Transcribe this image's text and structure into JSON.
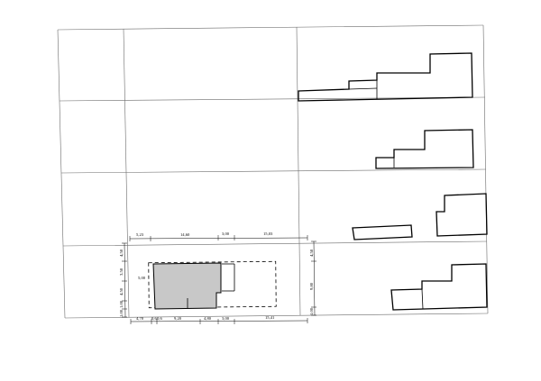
{
  "dimensions": {
    "top": [
      "5,23",
      "14,60",
      "3,00",
      "15,03"
    ],
    "bottom": [
      "4,70",
      "0,6",
      "0,6",
      "9,20",
      "4,80",
      "3,00",
      "15,41"
    ],
    "left": [
      "4,58",
      "3,58",
      "4,50",
      "1,00",
      "1,00"
    ],
    "right": [
      "4,58",
      "9,80",
      "1,00"
    ],
    "inner": "5,00"
  }
}
